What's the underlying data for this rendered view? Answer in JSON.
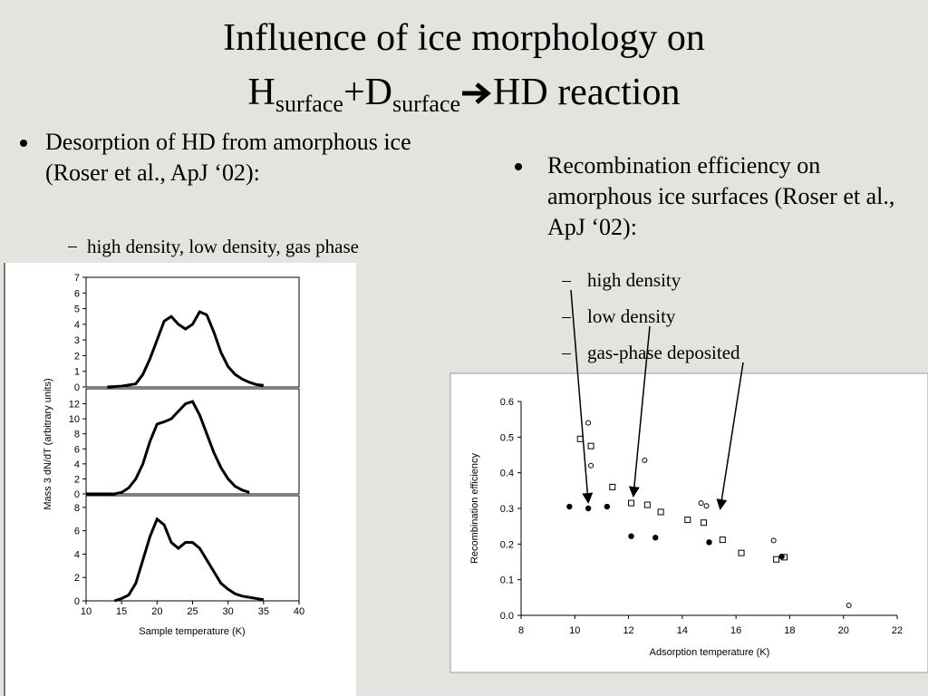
{
  "slide": {
    "title_line1": "Influence of ice morphology on",
    "title_line2": {
      "h": "H",
      "sub1": "surface",
      "d": "+D",
      "sub2": "surface",
      "rest": "HD reaction"
    },
    "left_bullet": "Desorption of HD from amorphous ice (Roser et al., ApJ ‘02):",
    "left_sub": "high density, low density, gas phase",
    "right_bullet": "Recombination efficiency on amorphous ice surfaces (Roser et al., ApJ  ‘02):",
    "right_subs": [
      "high density",
      "low density",
      "gas-phase deposited"
    ]
  },
  "chart_data": [
    {
      "type": "line",
      "xlabel": "Sample temperature (K)",
      "ylabel": "Mass 3 dN/dT (arbitrary units)",
      "xlim": [
        10,
        40
      ],
      "xticks": [
        10,
        15,
        20,
        25,
        30,
        35,
        40
      ],
      "color": "#000000",
      "panels": [
        {
          "ylim": [
            0,
            7
          ],
          "yticks": [
            0,
            1,
            2,
            3,
            4,
            5,
            6,
            7
          ],
          "x": [
            13,
            15,
            17,
            18,
            19,
            20,
            21,
            22,
            23,
            24,
            25,
            26,
            27,
            28,
            29,
            30,
            31,
            32,
            33,
            34,
            35
          ],
          "values": [
            0,
            0.05,
            0.2,
            0.8,
            1.8,
            3,
            4.2,
            4.5,
            4.0,
            3.7,
            4.0,
            4.8,
            4.6,
            3.5,
            2.2,
            1.3,
            0.8,
            0.5,
            0.3,
            0.15,
            0.1
          ]
        },
        {
          "ylim": [
            0,
            14
          ],
          "yticks": [
            0,
            2,
            4,
            6,
            8,
            10,
            12
          ],
          "x": [
            10,
            14,
            15,
            16,
            17,
            18,
            19,
            20,
            21,
            22,
            23,
            24,
            25,
            26,
            27,
            28,
            29,
            30,
            31,
            32,
            33
          ],
          "values": [
            0,
            0,
            0.2,
            0.8,
            2,
            4,
            7,
            9.3,
            9.6,
            10,
            11,
            12,
            12.3,
            10.5,
            8,
            5.5,
            3.5,
            2,
            1,
            0.5,
            0.2
          ]
        },
        {
          "ylim": [
            0,
            9
          ],
          "yticks": [
            0,
            2,
            4,
            6,
            8
          ],
          "x": [
            14,
            15,
            16,
            17,
            18,
            19,
            20,
            21,
            22,
            23,
            24,
            25,
            26,
            27,
            28,
            29,
            30,
            31,
            32,
            33,
            34,
            35
          ],
          "values": [
            0,
            0.2,
            0.5,
            1.5,
            3.5,
            5.5,
            7,
            6.5,
            5,
            4.5,
            5,
            5,
            4.5,
            3.5,
            2.5,
            1.5,
            1,
            0.6,
            0.4,
            0.3,
            0.2,
            0.1
          ]
        }
      ]
    },
    {
      "type": "scatter",
      "xlabel": "Adsorption temperature (K)",
      "ylabel": "Recombination efficiency",
      "xlim": [
        8,
        22
      ],
      "xticks": [
        8,
        10,
        12,
        14,
        16,
        18,
        20,
        22
      ],
      "ylim": [
        0,
        0.6
      ],
      "yticks": [
        {
          "value": 0,
          "label": "0.0"
        },
        0.1,
        0.2,
        0.3,
        0.4,
        0.5,
        0.6
      ],
      "series": [
        {
          "marker": "filled-circle",
          "color": "#000000",
          "x": [
            9.8,
            10.5,
            11.2,
            12.1,
            13,
            15,
            17.7
          ],
          "values": [
            0.305,
            0.3,
            0.305,
            0.222,
            0.218,
            0.205,
            0.165
          ]
        },
        {
          "marker": "open-square",
          "color": "#000000",
          "x": [
            10.2,
            10.6,
            11.4,
            12.1,
            12.7,
            13.2,
            14.2,
            14.8,
            15.5,
            16.2,
            17.5,
            17.8
          ],
          "values": [
            0.495,
            0.475,
            0.36,
            0.315,
            0.31,
            0.29,
            0.268,
            0.26,
            0.212,
            0.175,
            0.157,
            0.163
          ]
        },
        {
          "marker": "open-circle",
          "color": "#000000",
          "x": [
            10.5,
            10.6,
            12.6,
            14.7,
            14.9,
            17.4,
            20.2
          ],
          "values": [
            0.54,
            0.42,
            0.435,
            0.315,
            0.307,
            0.21,
            0.028
          ]
        }
      ]
    }
  ]
}
